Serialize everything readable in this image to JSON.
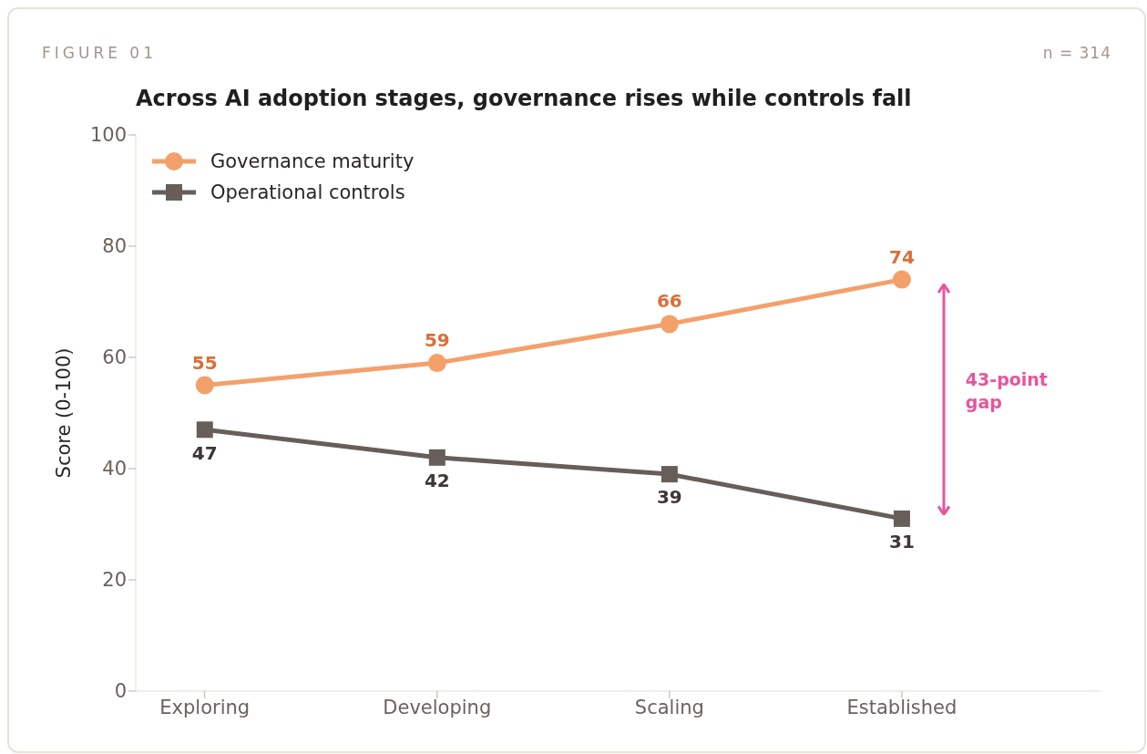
{
  "chart_data": {
    "type": "line",
    "title": "Across AI adoption stages, governance rises while controls fall",
    "ylabel": "Score (0-100)",
    "annotations": [
      "FIGURE 01",
      "n = 314",
      "43-point gap"
    ],
    "categories": [
      "Exploring",
      "Developing",
      "Scaling",
      "Established"
    ],
    "series": [
      {
        "name": "Governance maturity",
        "color": "#f4a06b",
        "marker": "circle",
        "values": [
          55,
          59,
          66,
          74
        ]
      },
      {
        "name": "Operational controls",
        "color": "#675e59",
        "marker": "square",
        "values": [
          47,
          42,
          39,
          31
        ]
      }
    ],
    "ylim": [
      0,
      100
    ],
    "yticks": [
      0,
      20,
      40,
      60,
      80,
      100
    ],
    "grid": false,
    "legend": "top left",
    "data_labels": true,
    "line_style": "solid"
  }
}
